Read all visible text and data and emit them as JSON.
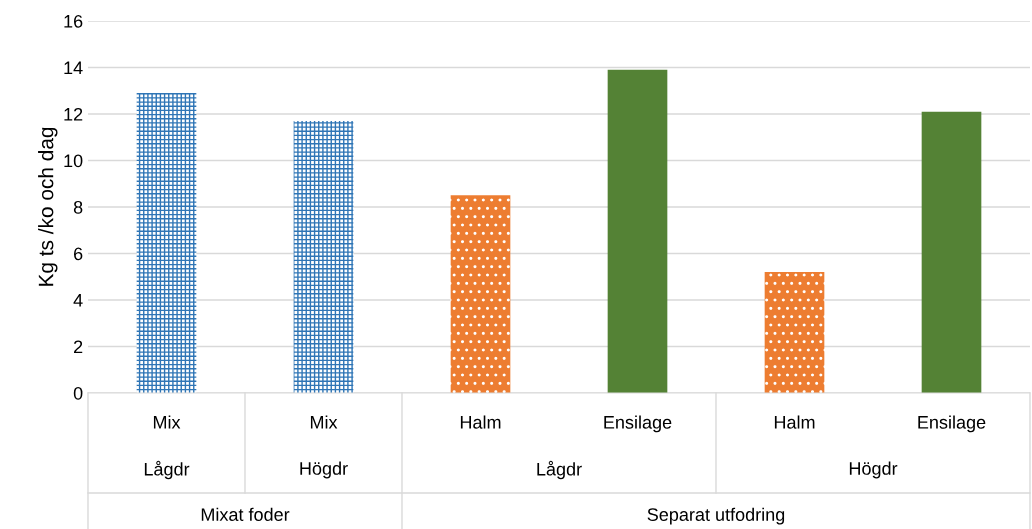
{
  "chart_data": {
    "type": "bar",
    "ylabel": "Kg ts /ko och dag",
    "categories": [
      "Mix",
      "Mix",
      "Halm",
      "Ensilage",
      "Halm",
      "Ensilage"
    ],
    "values": [
      12.9,
      11.7,
      8.5,
      13.9,
      5.2,
      12.1
    ],
    "colors": [
      "#2e75b6",
      "#2e75b6",
      "#ed7d31",
      "#548235",
      "#ed7d31",
      "#548235"
    ],
    "annotations": [
      "Lågdr",
      "Högdr",
      "Lågdr",
      "Högdr",
      "Mixat foder",
      "Separat utfodring"
    ],
    "ylim": [
      0,
      16
    ],
    "yticks": [
      0,
      2,
      4,
      6,
      8,
      10,
      12,
      14,
      16
    ],
    "grid": "y",
    "legend": false
  }
}
